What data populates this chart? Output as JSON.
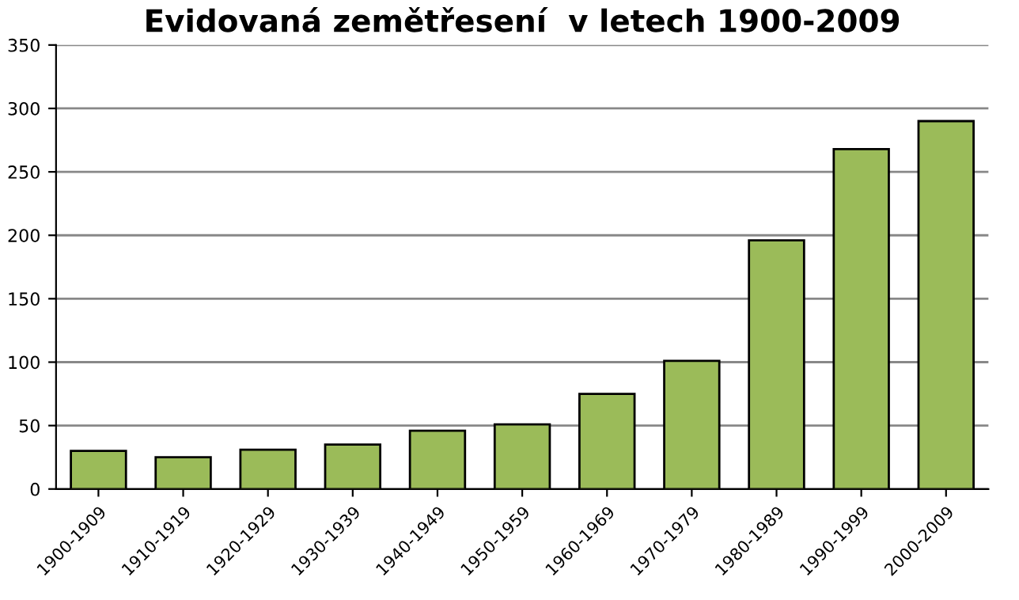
{
  "chart_data": {
    "type": "bar",
    "title": "Evidovaná zemětřesení  v letech 1900-2009",
    "categories": [
      "1900-1909",
      "1910-1919",
      "1920-1929",
      "1930-1939",
      "1940-1949",
      "1950-1959",
      "1960-1969",
      "1970-1979",
      "1980-1989",
      "1990-1999",
      "2000-2009"
    ],
    "values": [
      30,
      25,
      31,
      35,
      46,
      51,
      75,
      101,
      196,
      268,
      290
    ],
    "color": "#9bbb59",
    "ylim": [
      0,
      350
    ],
    "yticks": [
      0,
      50,
      100,
      150,
      200,
      250,
      300,
      350
    ],
    "grid": "y"
  }
}
